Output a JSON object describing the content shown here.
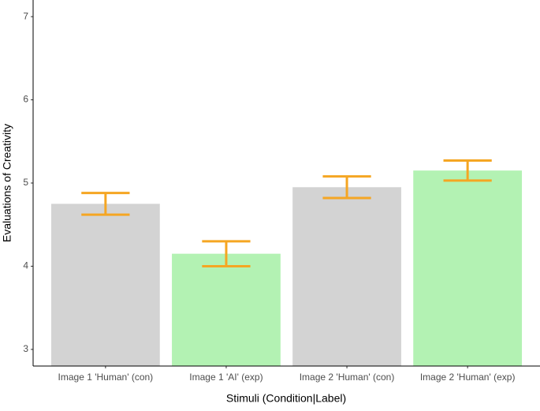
{
  "chart_data": {
    "type": "bar",
    "x_label": "Stimuli (Condition|Label)",
    "y_label": "Evaluations of Creativity",
    "categories": [
      "Image 1 'Human' (con)",
      "Image 1 'AI' (exp)",
      "Image 2 'Human' (con)",
      "Image 2 'Human' (exp)"
    ],
    "values": [
      4.75,
      4.15,
      4.95,
      5.15
    ],
    "errors": [
      0.13,
      0.15,
      0.13,
      0.12
    ],
    "colors": [
      "#d3d3d3",
      "#b3f2b3",
      "#d3d3d3",
      "#b3f2b3"
    ],
    "error_color": "#f5a623",
    "ylim": [
      2.8,
      7.2
    ],
    "yticks": [
      3,
      4,
      5,
      6,
      7
    ],
    "grid": false
  }
}
